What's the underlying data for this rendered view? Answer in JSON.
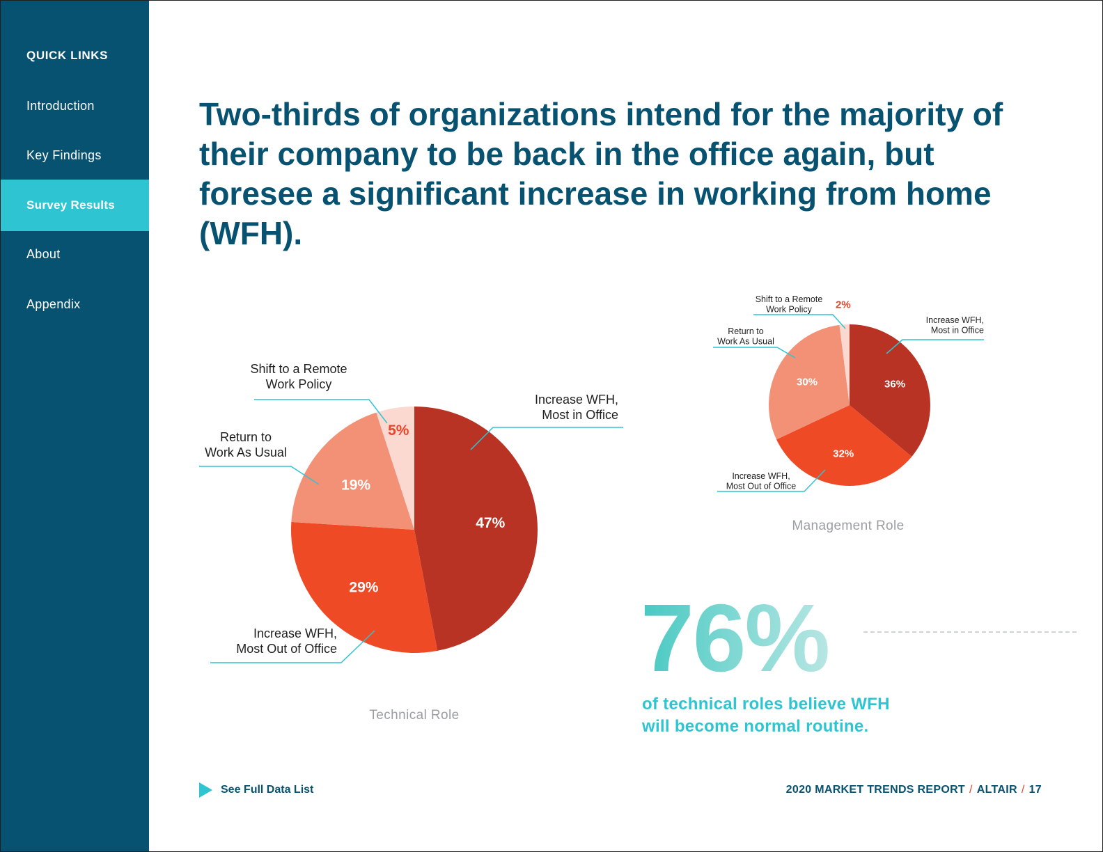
{
  "sidebar": {
    "heading": "QUICK LINKS",
    "items": [
      {
        "label": "Introduction",
        "active": false
      },
      {
        "label": "Key Findings",
        "active": false
      },
      {
        "label": "Survey Results",
        "active": true
      },
      {
        "label": "About",
        "active": false
      },
      {
        "label": "Appendix",
        "active": false
      }
    ]
  },
  "headline": "Two-thirds of organizations intend for the majority of their company to be back in the office again, but foresee a significant increase in working from home (WFH).",
  "colors": {
    "navy": "#075270",
    "teal": "#2fc4d2",
    "increase_wfh_most_in_office": "#b83323",
    "increase_wfh_most_out_of_office": "#ee4a26",
    "return_to_work_as_usual": "#f39177",
    "shift_to_remote_policy": "#fbd9d0",
    "small_value_label": "#e8452a"
  },
  "chart_data": [
    {
      "type": "pie",
      "title": "Technical Role",
      "slices": [
        {
          "label": "Increase WFH, Most in Office",
          "value": 47,
          "display": "47%",
          "color": "#b83323"
        },
        {
          "label": "Increase WFH, Most Out of Office",
          "value": 29,
          "display": "29%",
          "color": "#ee4a26"
        },
        {
          "label": "Return to Work As Usual",
          "value": 19,
          "display": "19%",
          "color": "#f39177"
        },
        {
          "label": "Shift to a Remote Work Policy",
          "value": 5,
          "display": "5%",
          "color": "#fbd9d0"
        }
      ],
      "callouts": {
        "in_office": [
          "Increase WFH,",
          "Most in Office"
        ],
        "out_office": [
          "Increase WFH,",
          "Most Out of Office"
        ],
        "usual": [
          "Return to",
          "Work As Usual"
        ],
        "remote": [
          "Shift to a Remote",
          "Work Policy"
        ]
      }
    },
    {
      "type": "pie",
      "title": "Management Role",
      "slices": [
        {
          "label": "Increase WFH, Most in Office",
          "value": 36,
          "display": "36%",
          "color": "#b83323"
        },
        {
          "label": "Increase WFH, Most Out of Office",
          "value": 32,
          "display": "32%",
          "color": "#ee4a26"
        },
        {
          "label": "Return to Work As Usual",
          "value": 30,
          "display": "30%",
          "color": "#f39177"
        },
        {
          "label": "Shift to a Remote Work Policy",
          "value": 2,
          "display": "2%",
          "color": "#fbd9d0"
        }
      ],
      "callouts": {
        "in_office": [
          "Increase WFH,",
          "Most in Office"
        ],
        "out_office": [
          "Increase WFH,",
          "Most Out of Office"
        ],
        "usual": [
          "Return to",
          "Work As Usual"
        ],
        "remote": [
          "Shift to a Remote",
          "Work Policy"
        ]
      }
    }
  ],
  "stat": {
    "value": "76%",
    "caption_line1": "of technical roles believe WFH",
    "caption_line2": "will become normal routine."
  },
  "footer": {
    "link_label": "See Full Data List",
    "report": "2020 MARKET TRENDS REPORT",
    "sep1": "/",
    "brand": "ALTAIR",
    "sep2": "/",
    "page_number": "17"
  }
}
